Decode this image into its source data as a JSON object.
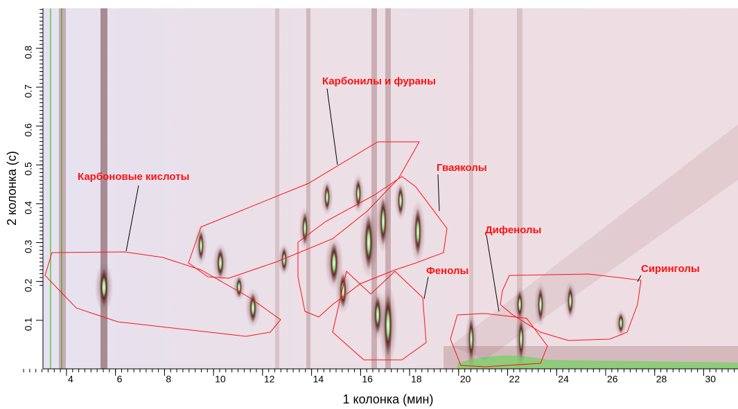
{
  "chart_data": {
    "type": "heatmap",
    "x_label": "1 колонка (мин)",
    "y_label": "2 колонка (с)",
    "xlim": [
      3.04,
      31.4
    ],
    "xticks": [
      4,
      6,
      8,
      10,
      12,
      14,
      16,
      18,
      20,
      22,
      24,
      26,
      28,
      30
    ],
    "ylim": [
      -0.025,
      0.903
    ],
    "yticks": [
      0.1,
      0.2,
      0.3,
      0.4,
      0.5,
      0.6,
      0.7,
      0.8
    ],
    "annotations": [
      {
        "text": "Карбоновые кислоты"
      },
      {
        "text": "Карбонилы и фураны"
      },
      {
        "text": "Гваяколы"
      },
      {
        "text": "Дифенолы"
      },
      {
        "text": "Фенолы"
      },
      {
        "text": "Сиринголы"
      }
    ],
    "annotation_color": "#ff1010"
  }
}
